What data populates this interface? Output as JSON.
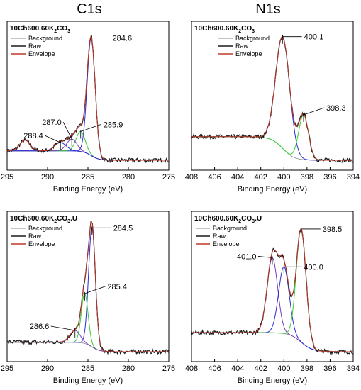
{
  "header": {
    "left": "C1s",
    "right": "N1s"
  },
  "legend": {
    "background": "Background",
    "raw": "Raw",
    "envelope": "Envelope"
  },
  "colors": {
    "raw": "#1a1a1a",
    "envelope": "#c0392b",
    "background": "#8a8a8a",
    "peak_main": "#2b2bd6",
    "peak_green": "#33cc33",
    "peak_purple": "#7a3db8"
  },
  "chart_data": [
    {
      "type": "line",
      "panel": "top-left",
      "title": "10Ch600.60K2CO3",
      "xlabel": "Binding Energy (eV)",
      "xlim": [
        295,
        275
      ],
      "xticks": [
        295,
        290,
        285,
        280,
        275
      ],
      "legend_position": "top-left",
      "peaks": [
        {
          "center": 284.6,
          "label": "284.6",
          "height": 1.0,
          "width": 0.7,
          "color": "peak_main"
        },
        {
          "center": 285.9,
          "label": "285.9",
          "height": 0.17,
          "width": 0.8,
          "color": "peak_green"
        },
        {
          "center": 287.0,
          "label": "287.0",
          "height": 0.1,
          "width": 0.9,
          "color": "peak_purple"
        },
        {
          "center": 288.4,
          "label": "288.4",
          "height": 0.07,
          "width": 1.0,
          "color": "peak_main"
        }
      ],
      "extra_features": [
        {
          "center": 292.8,
          "height": 0.09,
          "width": 0.9
        }
      ],
      "background_levels": [
        0.08,
        0.0
      ]
    },
    {
      "type": "line",
      "panel": "top-right",
      "title": "10Ch600.60K2CO3",
      "xlabel": "Binding Energy (eV)",
      "xlim": [
        408,
        394
      ],
      "xticks": [
        408,
        406,
        404,
        402,
        400,
        398,
        396,
        394
      ],
      "legend_position": "top-right",
      "peaks": [
        {
          "center": 400.1,
          "label": "400.1",
          "height": 0.95,
          "width": 0.85,
          "color": "peak_main"
        },
        {
          "center": 398.3,
          "label": "398.3",
          "height": 0.38,
          "width": 0.6,
          "color": "peak_green"
        }
      ],
      "extra_features": [],
      "background_levels": [
        0.2,
        0.0
      ]
    },
    {
      "type": "line",
      "panel": "bottom-left",
      "title": "10Ch600.60K2CO3.U",
      "xlabel": "Binding Energy (eV)",
      "xlim": [
        295,
        275
      ],
      "xticks": [
        295,
        290,
        285,
        280,
        275
      ],
      "legend_position": "top-left",
      "peaks": [
        {
          "center": 284.5,
          "label": "284.5",
          "height": 1.0,
          "width": 0.6,
          "color": "peak_main"
        },
        {
          "center": 285.4,
          "label": "285.4",
          "height": 0.42,
          "width": 0.6,
          "color": "peak_green"
        },
        {
          "center": 286.6,
          "label": "286.6",
          "height": 0.1,
          "width": 0.9,
          "color": "peak_purple"
        }
      ],
      "extra_features": [],
      "background_levels": [
        0.08,
        0.0
      ]
    },
    {
      "type": "line",
      "panel": "bottom-right",
      "title": "10Ch600.60K2CO3.U",
      "xlabel": "Binding Energy (eV)",
      "xlim": [
        408,
        394
      ],
      "xticks": [
        408,
        406,
        404,
        402,
        400,
        398,
        396,
        394
      ],
      "legend_position": "top-left",
      "peaks": [
        {
          "center": 401.0,
          "label": "401.0",
          "height": 0.63,
          "width": 0.65,
          "color": "peak_purple"
        },
        {
          "center": 400.0,
          "label": "400.0",
          "height": 0.56,
          "width": 0.65,
          "color": "peak_main"
        },
        {
          "center": 398.5,
          "label": "398.5",
          "height": 0.95,
          "width": 0.6,
          "color": "peak_green"
        }
      ],
      "extra_features": [],
      "background_levels": [
        0.16,
        0.0
      ]
    }
  ]
}
